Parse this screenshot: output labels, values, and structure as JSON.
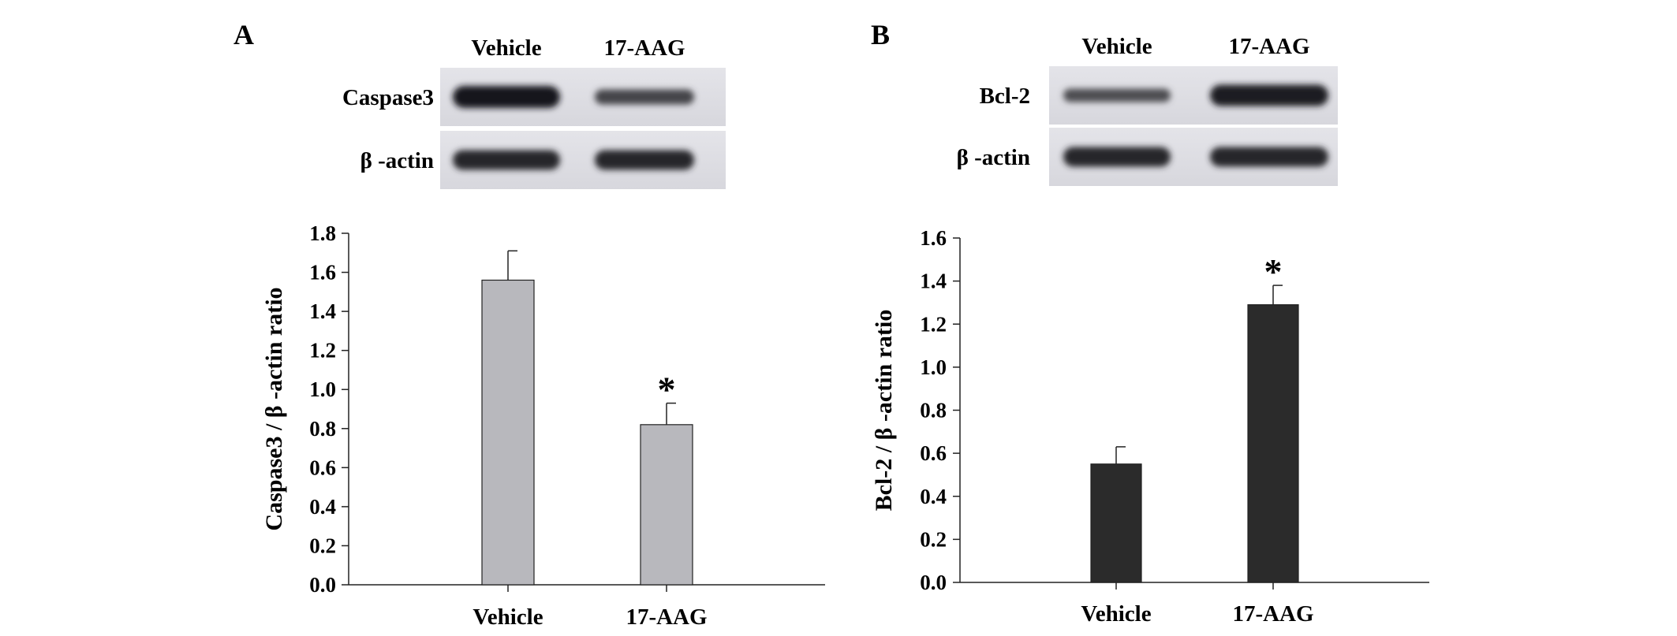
{
  "panels": [
    {
      "letter": "A",
      "blot": {
        "lanes": [
          "Vehicle",
          "17-AAG"
        ],
        "rows": [
          {
            "label": "Caspase3",
            "intensity": [
              1.0,
              0.55
            ]
          },
          {
            "label": "β -actin",
            "intensity": [
              0.85,
              0.85
            ]
          }
        ]
      }
    },
    {
      "letter": "B",
      "blot": {
        "lanes": [
          "Vehicle",
          "17-AAG"
        ],
        "rows": [
          {
            "label": "Bcl-2",
            "intensity": [
              0.45,
              0.95
            ]
          },
          {
            "label": "β -actin",
            "intensity": [
              0.85,
              0.85
            ]
          }
        ]
      }
    }
  ],
  "chart_data": [
    {
      "type": "bar",
      "categories": [
        "Vehicle",
        "17-AAG"
      ],
      "values": [
        1.56,
        0.82
      ],
      "errors": [
        0.15,
        0.11
      ],
      "significance": [
        "",
        "*"
      ],
      "ylabel": "Caspase3 / β -actin ratio",
      "ylim": [
        0,
        1.8
      ],
      "yticks": [
        "0.0",
        "0.2",
        "0.4",
        "0.6",
        "0.8",
        "1.0",
        "1.2",
        "1.4",
        "1.6",
        "1.8"
      ],
      "bar_color": "#b8b8bd",
      "grid": false
    },
    {
      "type": "bar",
      "categories": [
        "Vehicle",
        "17-AAG"
      ],
      "values": [
        0.55,
        1.29
      ],
      "errors": [
        0.08,
        0.09
      ],
      "significance": [
        "",
        "*"
      ],
      "ylabel": "Bcl-2 / β -actin ratio",
      "ylim": [
        0,
        1.6
      ],
      "yticks": [
        "0.0",
        "0.2",
        "0.4",
        "0.6",
        "0.8",
        "1.0",
        "1.2",
        "1.4",
        "1.6"
      ],
      "bar_color": "#2b2b2b",
      "grid": false
    }
  ]
}
